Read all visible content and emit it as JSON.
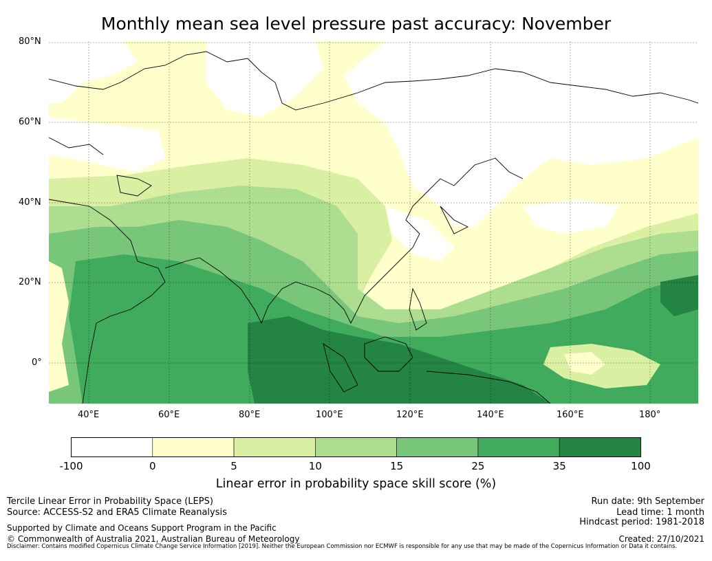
{
  "title": "Monthly mean sea level pressure past accuracy: November",
  "map": {
    "lat_ticks": [
      "80°N",
      "60°N",
      "40°N",
      "20°N",
      "0°"
    ],
    "lon_ticks": [
      "40°E",
      "60°E",
      "80°E",
      "100°E",
      "120°E",
      "140°E",
      "160°E",
      "180°"
    ]
  },
  "legend": {
    "ticks": [
      "-100",
      "0",
      "5",
      "10",
      "15",
      "25",
      "35",
      "100"
    ],
    "bins": [
      {
        "range": "-100 to 0",
        "color": "#ffffff"
      },
      {
        "range": "0 to 5",
        "color": "#ffffcc"
      },
      {
        "range": "5 to 10",
        "color": "#d9f0a3"
      },
      {
        "range": "10 to 15",
        "color": "#addd8e"
      },
      {
        "range": "15 to 25",
        "color": "#78c679"
      },
      {
        "range": "25 to 35",
        "color": "#41ab5d"
      },
      {
        "range": "35 to 100",
        "color": "#238443"
      }
    ],
    "label": "Linear error in probability space skill score (%)"
  },
  "footer": {
    "left": {
      "line1": "Tercile Linear Error in Probability Space (LEPS)",
      "line2": "Source: ACCESS-S2 and ERA5 Climate Reanalysis",
      "line3": "Supported by Climate and Oceans Support Program in the Pacific",
      "line4": "© Commonwealth of Australia 2021, Australian Bureau of Meteorology"
    },
    "right": {
      "run_date": "Run date: 9th September",
      "lead_time": "Lead time: 1 month",
      "hindcast": "Hindcast period: 1981-2018",
      "created": "Created: 27/10/2021"
    },
    "disclaimer": "Disclaimer: Contains modified Copernicus Climate Change Service Information [2019]. Neither the European Commission nor ECMWF is responsible for any use that may be made of the Copernicus Information or Data it contains."
  }
}
